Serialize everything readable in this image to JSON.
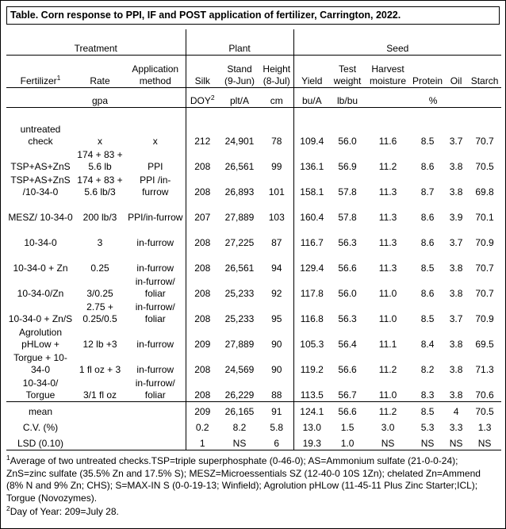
{
  "title": "Table. Corn response to PPI, IF and POST application of fertilizer, Carrington, 2022.",
  "groups": [
    {
      "label": "Treatment"
    },
    {
      "label": "Plant"
    },
    {
      "label": "Seed"
    }
  ],
  "columns": [
    {
      "label": "Fertilizer",
      "sup": "1"
    },
    {
      "label": "Rate"
    },
    {
      "label": "Application method"
    },
    {
      "label": "Silk"
    },
    {
      "label": "Stand (9-Jun)"
    },
    {
      "label": "Height (8-Jul)"
    },
    {
      "label": "Yield"
    },
    {
      "label": "Test weight"
    },
    {
      "label": "Harvest moisture"
    },
    {
      "label": "Protein"
    },
    {
      "label": "Oil"
    },
    {
      "label": "Starch"
    }
  ],
  "units": {
    "rate": "gpa",
    "silk": "DOY",
    "silk_sup": "2",
    "stand": "plt/A",
    "height": "cm",
    "yield": "bu/A",
    "test_weight": "lb/bu",
    "percent": "%"
  },
  "rows": [
    {
      "fertilizer": "untreated check",
      "rate": "x",
      "method": "x",
      "values": [
        "212",
        "24,901",
        "78",
        "109.4",
        "56.0",
        "11.6",
        "8.5",
        "3.7",
        "70.7"
      ]
    },
    {
      "fertilizer": "TSP+AS+ZnS",
      "rate": "174 + 83 + 5.6 lb",
      "method": "PPI",
      "values": [
        "208",
        "26,561",
        "99",
        "136.1",
        "56.9",
        "11.2",
        "8.6",
        "3.8",
        "70.5"
      ]
    },
    {
      "fertilizer": "TSP+AS+ZnS /10-34-0",
      "rate": "174 + 83 + 5.6 lb/3",
      "method": "PPI /in-furrow",
      "values": [
        "208",
        "26,893",
        "101",
        "158.1",
        "57.8",
        "11.3",
        "8.7",
        "3.8",
        "69.8"
      ]
    },
    {
      "fertilizer": "MESZ/ 10-34-0",
      "rate": "200 lb/3",
      "method": "PPI/in-furrow",
      "values": [
        "207",
        "27,889",
        "103",
        "160.4",
        "57.8",
        "11.3",
        "8.6",
        "3.9",
        "70.1"
      ]
    },
    {
      "fertilizer": "10-34-0",
      "rate": "3",
      "method": "in-furrow",
      "values": [
        "208",
        "27,225",
        "87",
        "116.7",
        "56.3",
        "11.3",
        "8.6",
        "3.7",
        "70.9"
      ]
    },
    {
      "fertilizer": "10-34-0 + Zn",
      "rate": "0.25",
      "method": "in-furrow",
      "values": [
        "208",
        "26,561",
        "94",
        "129.4",
        "56.6",
        "11.3",
        "8.5",
        "3.8",
        "70.7"
      ]
    },
    {
      "fertilizer": "10-34-0/Zn",
      "rate": "3/0.25",
      "method": "in-furrow/ foliar",
      "values": [
        "208",
        "25,233",
        "92",
        "117.8",
        "56.0",
        "11.0",
        "8.6",
        "3.8",
        "70.7"
      ]
    },
    {
      "fertilizer": "10-34-0 + Zn/S",
      "rate": "2.75 + 0.25/0.5",
      "method": "in-furrow/ foliar",
      "values": [
        "208",
        "25,233",
        "95",
        "116.8",
        "56.3",
        "11.0",
        "8.5",
        "3.7",
        "70.9"
      ]
    },
    {
      "fertilizer": "Agrolution pHLow +",
      "rate": "12 lb +3",
      "method": "in-furrow",
      "values": [
        "209",
        "27,889",
        "90",
        "105.3",
        "56.4",
        "11.1",
        "8.4",
        "3.8",
        "69.5"
      ]
    },
    {
      "fertilizer": "Torgue + 10-34-0",
      "rate": "1 fl oz + 3",
      "method": "in-furrow",
      "values": [
        "208",
        "24,569",
        "90",
        "119.2",
        "56.6",
        "11.2",
        "8.2",
        "3.8",
        "71.3"
      ]
    },
    {
      "fertilizer": "10-34-0/ Torgue",
      "rate": "3/1 fl oz",
      "method": "in-furrow/ foliar",
      "values": [
        "208",
        "26,229",
        "88",
        "113.5",
        "56.7",
        "11.0",
        "8.3",
        "3.8",
        "70.6"
      ]
    }
  ],
  "summary_rows": [
    {
      "label": "mean",
      "values": [
        "209",
        "26,165",
        "91",
        "124.1",
        "56.6",
        "11.2",
        "8.5",
        "4",
        "70.5"
      ]
    },
    {
      "label": "C.V. (%)",
      "values": [
        "0.2",
        "8.2",
        "5.8",
        "13.0",
        "1.5",
        "3.0",
        "5.3",
        "3.3",
        "1.3"
      ]
    },
    {
      "label": "LSD (0.10)",
      "values": [
        "1",
        "NS",
        "6",
        "19.3",
        "1.0",
        "NS",
        "NS",
        "NS",
        "NS"
      ]
    }
  ],
  "footnotes": [
    {
      "sup": "1",
      "text": "Average of two untreated checks.TSP=triple superphosphate (0-46-0); AS=Ammonium sulfate (21-0-0-24); ZnS=zinc sulfate (35.5% Zn and 17.5% S); MESZ=Microessentials SZ (12-40-0 10S 1Zn); chelated Zn=Ammend (8% N and 9% Zn; CHS); S=MAX-IN S (0-0-19-13; Winfield); Agrolution pHLow (11-45-11 Plus Zinc Starter;ICL); Torgue (Novozymes)."
    },
    {
      "sup": "2",
      "text": "Day of Year: 209=July 28."
    }
  ]
}
